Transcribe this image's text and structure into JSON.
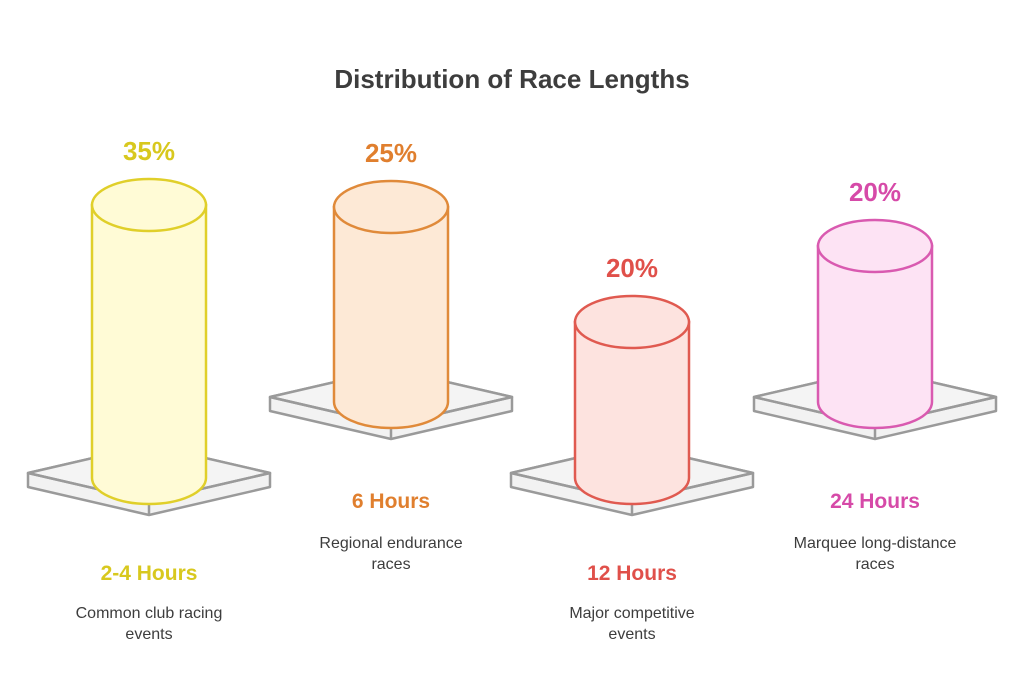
{
  "chart_data": {
    "type": "bar",
    "title": "Distribution of Race Lengths",
    "categories": [
      "2-4 Hours",
      "6 Hours",
      "12 Hours",
      "24 Hours"
    ],
    "values": [
      35,
      25,
      20,
      20
    ],
    "value_labels": [
      "35%",
      "25%",
      "20%",
      "20%"
    ],
    "descriptions": [
      [
        "Common club racing",
        "events"
      ],
      [
        "Regional endurance",
        "races"
      ],
      [
        "Major competitive",
        "events"
      ],
      [
        "Marquee long-distance",
        "races"
      ]
    ],
    "colors": [
      {
        "stroke": "#e0cf2a",
        "fill": "#fffbd6",
        "text": "#d8c81e"
      },
      {
        "stroke": "#e08a3a",
        "fill": "#fde9d6",
        "text": "#e07f2e"
      },
      {
        "stroke": "#e05a50",
        "fill": "#fde3df",
        "text": "#e0504a"
      },
      {
        "stroke": "#d95ab0",
        "fill": "#fde3f4",
        "text": "#d64aa8"
      }
    ],
    "unit": "%"
  }
}
